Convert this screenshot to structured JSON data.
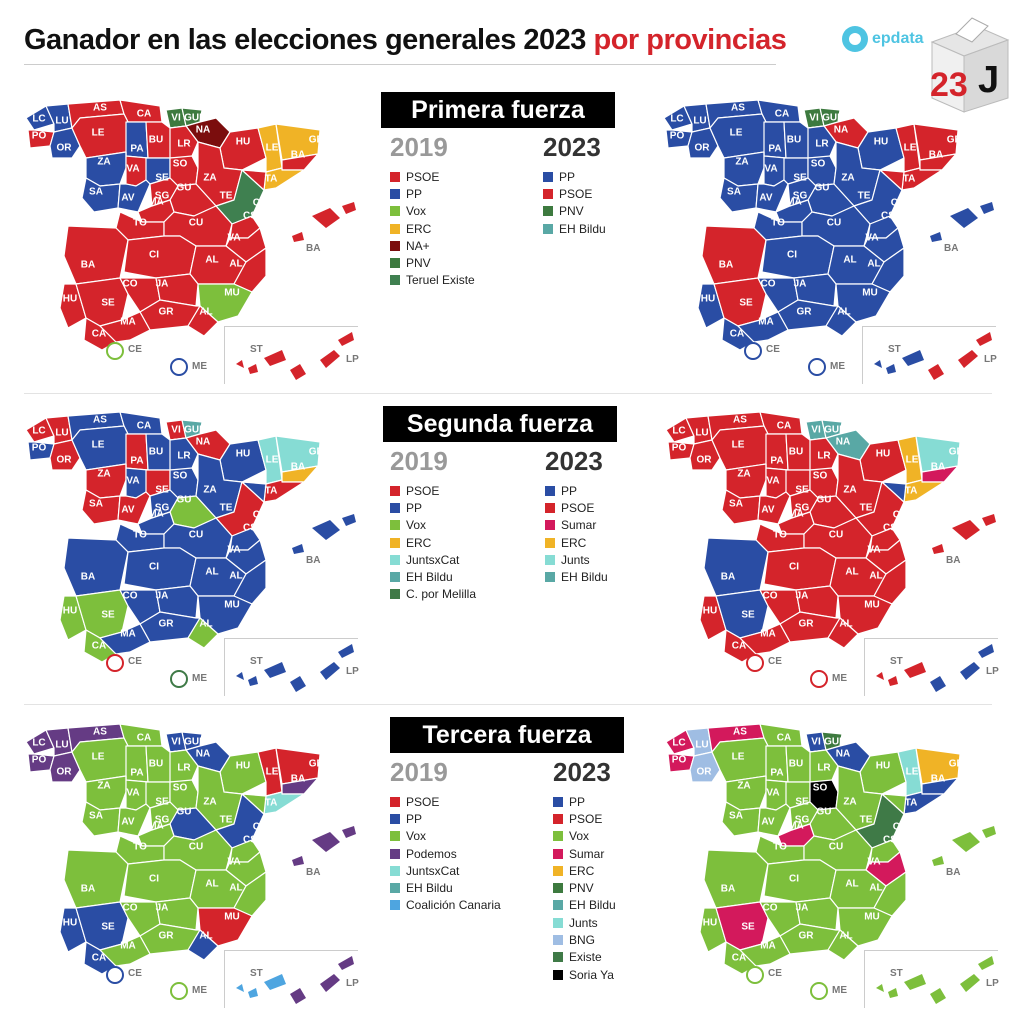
{
  "header": {
    "title_main": "Ganador en las elecciones generales 2023",
    "title_highlight": "por provincias",
    "brand": "epdata",
    "ballot_number": "23",
    "ballot_letter": "J"
  },
  "colors": {
    "PSOE": "#d4242b",
    "PP": "#2a4da4",
    "Vox": "#7dbf3c",
    "ERC": "#f0b326",
    "NA+": "#7b0d0d",
    "PNV": "#3d7a3f",
    "Teruel Existe": "#3f8050",
    "EH Bildu": "#59a8a5",
    "JuntsxCat": "#86dcd4",
    "Junts": "#86dcd4",
    "C. por Melilla": "#3f7a47",
    "Sumar": "#d3195c",
    "Podemos": "#653b84",
    "Coalición Canaria": "#4ea5e0",
    "BNG": "#9fbde3",
    "Existe": "#3f7a47",
    "Soria Ya": "#000000"
  },
  "sections": [
    {
      "heading": "Primera fuerza",
      "year_prev": "2019",
      "year_curr": "2023",
      "legend_prev": [
        "PSOE",
        "PP",
        "Vox",
        "ERC",
        "NA+",
        "PNV",
        "Teruel Existe"
      ],
      "legend_curr": [
        "PP",
        "PSOE",
        "PNV",
        "EH Bildu"
      ]
    },
    {
      "heading": "Segunda fuerza",
      "year_prev": "2019",
      "year_curr": "2023",
      "legend_prev": [
        "PSOE",
        "PP",
        "Vox",
        "ERC",
        "JuntsxCat",
        "EH Bildu",
        "C. por Melilla"
      ],
      "legend_curr": [
        "PP",
        "PSOE",
        "Sumar",
        "ERC",
        "Junts",
        "EH Bildu"
      ]
    },
    {
      "heading": "Tercera fuerza",
      "year_prev": "2019",
      "year_curr": "2023",
      "legend_prev": [
        "PSOE",
        "PP",
        "Vox",
        "Podemos",
        "JuntsxCat",
        "EH Bildu",
        "Coalición Canaria"
      ],
      "legend_curr": [
        "PP",
        "PSOE",
        "Vox",
        "Sumar",
        "ERC",
        "PNV",
        "EH Bildu",
        "Junts",
        "BNG",
        "Existe",
        "Soria Ya"
      ]
    }
  ],
  "provinces": [
    {
      "id": "LC",
      "label": "LC"
    },
    {
      "id": "LU",
      "label": "LU"
    },
    {
      "id": "PO",
      "label": "PO"
    },
    {
      "id": "OR",
      "label": "OR"
    },
    {
      "id": "AS",
      "label": "AS"
    },
    {
      "id": "CA_N",
      "label": "CA"
    },
    {
      "id": "VI",
      "label": "VI"
    },
    {
      "id": "GUI",
      "label": "GUI"
    },
    {
      "id": "NA",
      "label": "NA"
    },
    {
      "id": "LE",
      "label": "LE"
    },
    {
      "id": "PA",
      "label": "PA"
    },
    {
      "id": "BU",
      "label": "BU"
    },
    {
      "id": "LR",
      "label": "LR"
    },
    {
      "id": "HU",
      "label": "HU"
    },
    {
      "id": "LE_C",
      "label": "LE"
    },
    {
      "id": "GE",
      "label": "GE"
    },
    {
      "id": "BA_C",
      "label": "BA"
    },
    {
      "id": "TA",
      "label": "TA"
    },
    {
      "id": "ZA",
      "label": "ZA"
    },
    {
      "id": "VA",
      "label": "VA"
    },
    {
      "id": "SE",
      "label": "SE"
    },
    {
      "id": "SO",
      "label": "SO"
    },
    {
      "id": "ZA_A",
      "label": "ZA"
    },
    {
      "id": "SA",
      "label": "SA"
    },
    {
      "id": "AV",
      "label": "AV"
    },
    {
      "id": "SG",
      "label": "SG"
    },
    {
      "id": "GU",
      "label": "GU"
    },
    {
      "id": "TE",
      "label": "TE"
    },
    {
      "id": "MA",
      "label": "MA"
    },
    {
      "id": "CA_S",
      "label": "CA"
    },
    {
      "id": "TO",
      "label": "TO"
    },
    {
      "id": "CU",
      "label": "CU"
    },
    {
      "id": "CS",
      "label": "CS"
    },
    {
      "id": "BA",
      "label": "BA"
    },
    {
      "id": "CI",
      "label": "CI"
    },
    {
      "id": "VA_L",
      "label": "VA"
    },
    {
      "id": "AB",
      "label": "AL"
    },
    {
      "id": "AL_A",
      "label": "AL"
    },
    {
      "id": "HU_A",
      "label": "HU"
    },
    {
      "id": "SE_A",
      "label": "SE"
    },
    {
      "id": "CO",
      "label": "CO"
    },
    {
      "id": "JA",
      "label": "JA"
    },
    {
      "id": "MU",
      "label": "MU"
    },
    {
      "id": "GR",
      "label": "GR"
    },
    {
      "id": "AL_M",
      "label": "AL"
    },
    {
      "id": "CA_Z",
      "label": "CA"
    },
    {
      "id": "MA_G",
      "label": "MA"
    }
  ],
  "maps": [
    {
      "name": "primera-2019",
      "winners": {
        "LC": "PP",
        "LU": "PP",
        "PO": "PSOE",
        "OR": "PP",
        "AS": "PSOE",
        "CA_N": "PSOE",
        "VI": "PNV",
        "GUI": "PNV",
        "NA": "NA+",
        "LE": "PSOE",
        "PA": "PP",
        "BU": "PSOE",
        "LR": "PSOE",
        "HU": "PSOE",
        "LE_C": "ERC",
        "GE": "ERC",
        "BA_C": "PSOE",
        "TA": "ERC",
        "ZA": "PP",
        "VA": "PSOE",
        "SE": "PP",
        "SO": "PSOE",
        "ZA_A": "PSOE",
        "SA": "PP",
        "AV": "PP",
        "SG": "PSOE",
        "GU": "PSOE",
        "TE": "Teruel Existe",
        "MA": "PSOE",
        "CA_S": "PSOE",
        "TO": "PSOE",
        "CU": "PSOE",
        "CS": "PSOE",
        "BA": "PSOE",
        "CI": "PSOE",
        "VA_L": "PSOE",
        "AB": "PSOE",
        "AL_A": "PSOE",
        "HU_A": "PSOE",
        "SE_A": "PSOE",
        "CO": "PSOE",
        "JA": "PSOE",
        "MU": "Vox",
        "GR": "PSOE",
        "AL_M": "PSOE",
        "CA_Z": "PSOE",
        "MA_G": "PSOE"
      },
      "islands": {
        "BAL": "PSOE",
        "CAN_W": "PSOE",
        "CAN_E": "PSOE"
      },
      "ceuta": "Vox",
      "melilla": "PP"
    },
    {
      "name": "primera-2023",
      "winners": {
        "LC": "PP",
        "LU": "PP",
        "PO": "PP",
        "OR": "PP",
        "AS": "PP",
        "CA_N": "PP",
        "VI": "PNV",
        "GUI": "PNV",
        "NA": "PSOE",
        "LE": "PP",
        "PA": "PP",
        "BU": "PP",
        "LR": "PP",
        "HU": "PP",
        "LE_C": "PSOE",
        "GE": "PSOE",
        "BA_C": "PSOE",
        "TA": "PSOE",
        "ZA": "PP",
        "VA": "PP",
        "SE": "PP",
        "SO": "PP",
        "ZA_A": "PP",
        "SA": "PP",
        "AV": "PP",
        "SG": "PP",
        "GU": "PP",
        "TE": "PP",
        "MA": "PP",
        "CA_S": "PSOE",
        "TO": "PP",
        "CU": "PP",
        "CS": "PP",
        "BA": "PSOE",
        "CI": "PP",
        "VA_L": "PP",
        "AB": "PP",
        "AL_A": "PP",
        "HU_A": "PP",
        "SE_A": "PSOE",
        "CO": "PP",
        "JA": "PP",
        "MU": "PP",
        "GR": "PP",
        "AL_M": "PP",
        "CA_Z": "PP",
        "MA_G": "PP"
      },
      "islands": {
        "BAL": "PP",
        "CAN_W": "PP",
        "CAN_E": "PSOE"
      },
      "ceuta": "PP",
      "melilla": "PP"
    },
    {
      "name": "segunda-2019",
      "winners": {
        "LC": "PSOE",
        "LU": "PSOE",
        "PO": "PP",
        "OR": "PSOE",
        "AS": "PP",
        "CA_N": "PP",
        "VI": "PSOE",
        "GUI": "EH Bildu",
        "NA": "PSOE",
        "LE": "PP",
        "PA": "PSOE",
        "BU": "PP",
        "LR": "PP",
        "HU": "PP",
        "LE_C": "JuntsxCat",
        "GE": "JuntsxCat",
        "BA_C": "ERC",
        "TA": "PSOE",
        "ZA": "PSOE",
        "VA": "PP",
        "SE": "PSOE",
        "SO": "PP",
        "ZA_A": "PP",
        "SA": "PSOE",
        "AV": "PSOE",
        "SG": "PP",
        "GU": "Vox",
        "TE": "PSOE",
        "MA": "PP",
        "CA_S": "PP",
        "TO": "PP",
        "CU": "PP",
        "CS": "PP",
        "BA": "PP",
        "CI": "PP",
        "VA_L": "PP",
        "AB": "PP",
        "AL_A": "PP",
        "HU_A": "Vox",
        "SE_A": "Vox",
        "CO": "PP",
        "JA": "PP",
        "MU": "PP",
        "GR": "PP",
        "AL_M": "Vox",
        "CA_Z": "Vox",
        "MA_G": "PP"
      },
      "islands": {
        "BAL": "PP",
        "CAN_W": "PP",
        "CAN_E": "PP"
      },
      "ceuta": "PSOE",
      "melilla": "C. por Melilla"
    },
    {
      "name": "segunda-2023",
      "winners": {
        "LC": "PSOE",
        "LU": "PSOE",
        "PO": "PSOE",
        "OR": "PSOE",
        "AS": "PSOE",
        "CA_N": "PSOE",
        "VI": "EH Bildu",
        "GUI": "EH Bildu",
        "NA": "EH Bildu",
        "LE": "PSOE",
        "PA": "PSOE",
        "BU": "PSOE",
        "LR": "PSOE",
        "HU": "PSOE",
        "LE_C": "ERC",
        "GE": "Junts",
        "BA_C": "Sumar",
        "TA": "ERC",
        "ZA": "PSOE",
        "VA": "PSOE",
        "SE": "PSOE",
        "SO": "PSOE",
        "ZA_A": "PSOE",
        "SA": "PSOE",
        "AV": "PSOE",
        "SG": "PSOE",
        "GU": "PSOE",
        "TE": "PSOE",
        "MA": "PSOE",
        "CA_S": "PP",
        "TO": "PSOE",
        "CU": "PSOE",
        "CS": "PSOE",
        "BA": "PP",
        "CI": "PSOE",
        "VA_L": "PSOE",
        "AB": "PSOE",
        "AL_A": "PSOE",
        "HU_A": "PSOE",
        "SE_A": "PP",
        "CO": "PSOE",
        "JA": "PSOE",
        "MU": "PSOE",
        "GR": "PSOE",
        "AL_M": "PSOE",
        "CA_Z": "PSOE",
        "MA_G": "PSOE"
      },
      "islands": {
        "BAL": "PSOE",
        "CAN_W": "PSOE",
        "CAN_E": "PP"
      },
      "ceuta": "PSOE",
      "melilla": "PSOE"
    },
    {
      "name": "tercera-2019",
      "winners": {
        "LC": "Podemos",
        "LU": "Podemos",
        "PO": "Podemos",
        "OR": "Podemos",
        "AS": "Podemos",
        "CA_N": "Vox",
        "VI": "PP",
        "GUI": "PP",
        "NA": "PP",
        "LE": "Vox",
        "PA": "Vox",
        "BU": "Vox",
        "LR": "Vox",
        "HU": "Vox",
        "LE_C": "PSOE",
        "GE": "PSOE",
        "BA_C": "Podemos",
        "TA": "JuntsxCat",
        "ZA": "Vox",
        "VA": "Vox",
        "SE": "Vox",
        "SO": "Vox",
        "ZA_A": "Vox",
        "SA": "Vox",
        "AV": "Vox",
        "SG": "Vox",
        "GU": "PP",
        "TE": "PP",
        "MA": "Vox",
        "CA_S": "Vox",
        "TO": "Vox",
        "CU": "Vox",
        "CS": "Vox",
        "BA": "Vox",
        "CI": "Vox",
        "VA_L": "Vox",
        "AB": "Vox",
        "AL_A": "Vox",
        "HU_A": "PP",
        "SE_A": "PP",
        "CO": "Vox",
        "JA": "Vox",
        "MU": "PSOE",
        "GR": "Vox",
        "AL_M": "PP",
        "CA_Z": "PP",
        "MA_G": "Vox"
      },
      "islands": {
        "BAL": "Podemos",
        "CAN_W": "Coalición Canaria",
        "CAN_E": "Podemos"
      },
      "ceuta": "PP",
      "melilla": "Vox"
    },
    {
      "name": "tercera-2023",
      "winners": {
        "LC": "Sumar",
        "LU": "BNG",
        "PO": "Sumar",
        "OR": "BNG",
        "AS": "Sumar",
        "CA_N": "Vox",
        "VI": "PP",
        "GUI": "PNV",
        "NA": "PP",
        "LE": "Vox",
        "PA": "Vox",
        "BU": "Vox",
        "LR": "Vox",
        "HU": "Vox",
        "LE_C": "Junts",
        "GE": "ERC",
        "BA_C": "PP",
        "TA": "PP",
        "ZA": "Vox",
        "VA": "Vox",
        "SE": "Vox",
        "SO": "Soria Ya",
        "ZA_A": "Vox",
        "SA": "Vox",
        "AV": "Vox",
        "SG": "Vox",
        "GU": "Vox",
        "TE": "Existe",
        "MA": "Sumar",
        "CA_S": "Vox",
        "TO": "Vox",
        "CU": "Vox",
        "CS": "Vox",
        "BA": "Vox",
        "CI": "Vox",
        "VA_L": "Sumar",
        "AB": "Vox",
        "AL_A": "Vox",
        "HU_A": "Vox",
        "SE_A": "Sumar",
        "CO": "Vox",
        "JA": "Vox",
        "MU": "Vox",
        "GR": "Vox",
        "AL_M": "Vox",
        "CA_Z": "Vox",
        "MA_G": "Vox"
      },
      "islands": {
        "BAL": "Vox",
        "CAN_W": "Vox",
        "CAN_E": "Vox"
      },
      "ceuta": "Vox",
      "melilla": "Vox"
    }
  ],
  "labels": {
    "balearic": "BA",
    "ceuta": "CE",
    "melilla": "ME",
    "tenerife": "ST",
    "las_palmas": "LP"
  }
}
